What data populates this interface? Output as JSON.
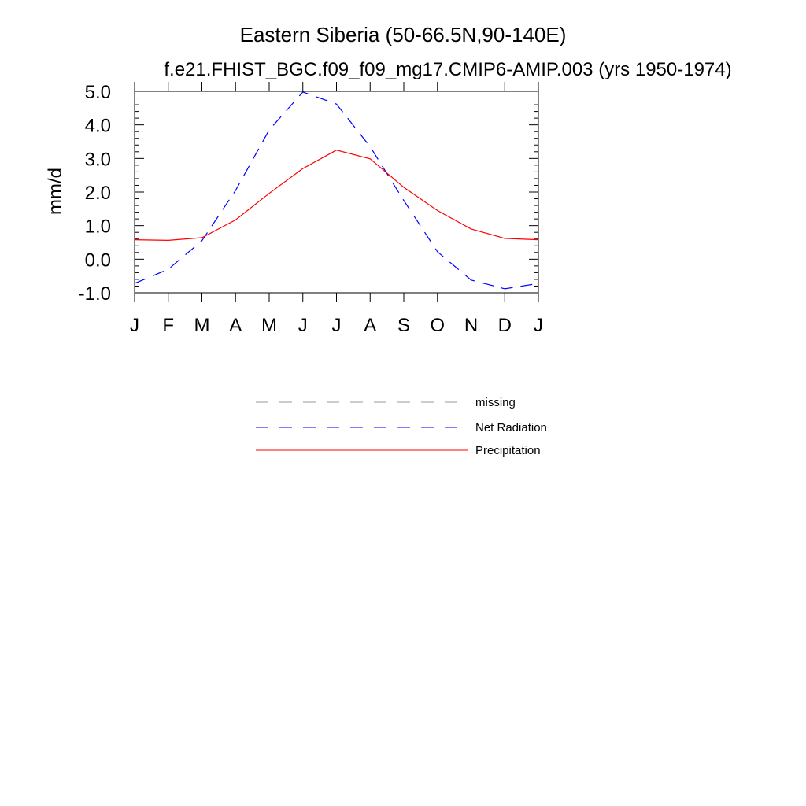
{
  "chart_data": {
    "type": "line",
    "title": "Eastern Siberia (50-66.5N,90-140E)",
    "subtitle": "f.e21.FHIST_BGC.f09_f09_mg17.CMIP6-AMIP.003 (yrs 1950-1974)",
    "xlabel": "",
    "ylabel": "mm/d",
    "ylim": [
      -1.0,
      5.0
    ],
    "yticks": [
      -1.0,
      0.0,
      1.0,
      2.0,
      3.0,
      4.0,
      5.0
    ],
    "ytick_labels": [
      "-1.0",
      "0.0",
      "1.0",
      "2.0",
      "3.0",
      "4.0",
      "5.0"
    ],
    "categories": [
      "J",
      "F",
      "M",
      "A",
      "M",
      "J",
      "J",
      "A",
      "S",
      "O",
      "N",
      "D",
      "J"
    ],
    "series": [
      {
        "name": "Net Radiation",
        "color": "#0000ff",
        "style": "dashed",
        "values": [
          -0.72,
          -0.3,
          0.55,
          2.05,
          3.85,
          4.98,
          4.62,
          3.35,
          1.75,
          0.22,
          -0.62,
          -0.88,
          -0.72
        ]
      },
      {
        "name": "Precipitation",
        "color": "#ff0000",
        "style": "solid",
        "values": [
          0.58,
          0.56,
          0.64,
          1.17,
          1.96,
          2.7,
          3.25,
          2.99,
          2.14,
          1.45,
          0.9,
          0.62,
          0.58
        ]
      }
    ],
    "legend": {
      "placement": "below",
      "entries": [
        {
          "label": "missing",
          "color": "#999999",
          "style": "dashed"
        },
        {
          "label": "Net Radiation",
          "color": "#0000ff",
          "style": "dashed"
        },
        {
          "label": "Precipitation",
          "color": "#ff0000",
          "style": "solid"
        }
      ]
    }
  }
}
